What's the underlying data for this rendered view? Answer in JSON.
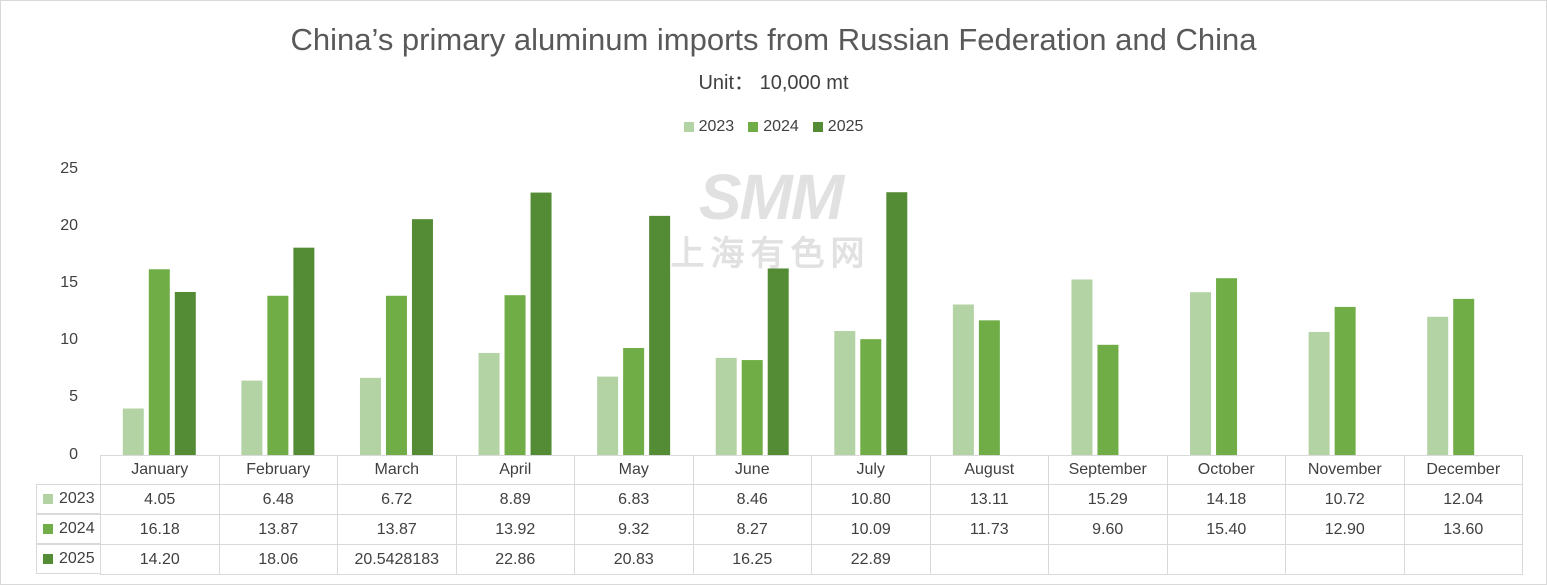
{
  "chart_data": {
    "type": "bar",
    "title": "China’s primary aluminum imports from Russian Federation and China",
    "subtitle": "Unit：  10,000 mt",
    "categories": [
      "January",
      "February",
      "March",
      "April",
      "May",
      "June",
      "July",
      "August",
      "September",
      "October",
      "November",
      "December"
    ],
    "ylim": [
      0,
      25
    ],
    "yticks": [
      "0",
      "5",
      "10",
      "15",
      "20",
      "25"
    ],
    "legend_position": "top-center",
    "grid": false,
    "series": [
      {
        "name": "2023",
        "color": "#b4d3a5",
        "values": [
          4.05,
          6.48,
          6.72,
          8.89,
          6.83,
          8.46,
          10.8,
          13.11,
          15.29,
          14.18,
          10.72,
          12.04
        ],
        "labels": [
          "4.05",
          "6.48",
          "6.72",
          "8.89",
          "6.83",
          "8.46",
          "10.80",
          "13.11",
          "15.29",
          "14.18",
          "10.72",
          "12.04"
        ]
      },
      {
        "name": "2024",
        "color": "#70ad47",
        "values": [
          16.18,
          13.87,
          13.87,
          13.92,
          9.32,
          8.27,
          10.09,
          11.73,
          9.6,
          15.4,
          12.9,
          13.6
        ],
        "labels": [
          "16.18",
          "13.87",
          "13.87",
          "13.92",
          "9.32",
          "8.27",
          "10.09",
          "11.73",
          "9.60",
          "15.40",
          "12.90",
          "13.60"
        ]
      },
      {
        "name": "2025",
        "color": "#548c36",
        "values": [
          14.2,
          18.06,
          20.5428183,
          22.86,
          20.83,
          16.25,
          22.89,
          null,
          null,
          null,
          null,
          null
        ],
        "labels": [
          "14.20",
          "18.06",
          "20.5428183",
          "22.86",
          "20.83",
          "16.25",
          "22.89",
          "",
          "",
          "",
          "",
          ""
        ]
      }
    ]
  },
  "watermark": {
    "big": "SMM",
    "small": "上海有色网"
  }
}
